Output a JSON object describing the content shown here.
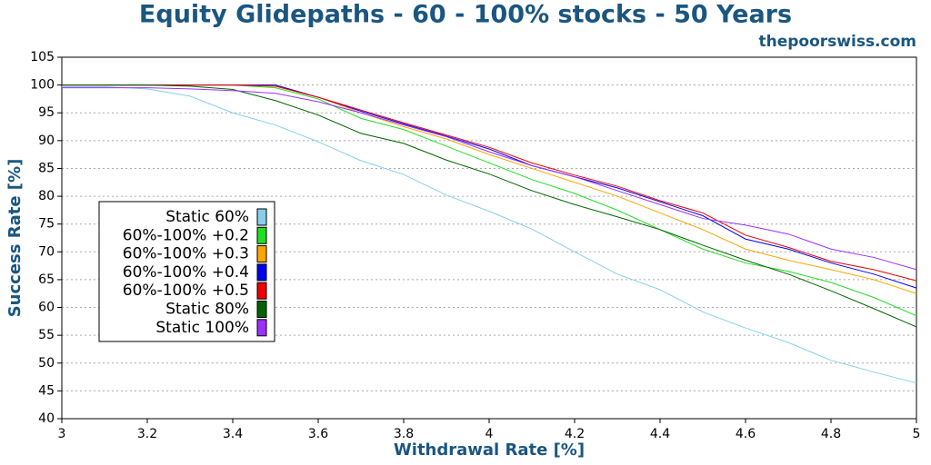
{
  "chart_data": {
    "type": "line",
    "title": "Equity Glidepaths - 60 - 100% stocks - 50 Years",
    "subtitle": "thepoorswiss.com",
    "x_label": "Withdrawal Rate [%]",
    "y_label": "Success Rate [%]",
    "x": [
      3.0,
      3.1,
      3.2,
      3.3,
      3.4,
      3.5,
      3.6,
      3.7,
      3.8,
      3.9,
      4.0,
      4.1,
      4.2,
      4.3,
      4.4,
      4.5,
      4.6,
      4.7,
      4.8,
      4.9,
      5.0
    ],
    "series": [
      {
        "name": "Static 60%",
        "color": "#87ceeb",
        "values": [
          99.7,
          99.7,
          99.3,
          98.0,
          95.0,
          92.8,
          89.8,
          86.4,
          83.9,
          80.2,
          77.3,
          74.1,
          70.0,
          66.0,
          63.2,
          59.2,
          56.3,
          53.7,
          50.5,
          48.4,
          46.4
        ]
      },
      {
        "name": "60%-100% +0.2",
        "color": "#22dd22",
        "values": [
          100,
          100,
          100,
          100,
          100,
          99.5,
          97.5,
          94.0,
          92.0,
          89.0,
          86.0,
          83.0,
          80.5,
          77.5,
          74.0,
          70.5,
          68.0,
          66.5,
          64.5,
          61.8,
          58.5
        ]
      },
      {
        "name": "60%-100% +0.3",
        "color": "#ffa500",
        "values": [
          100,
          100,
          100,
          100,
          100,
          99.8,
          97.8,
          95.0,
          92.5,
          90.3,
          87.5,
          85.0,
          82.5,
          80.0,
          77.0,
          74.0,
          70.5,
          68.5,
          66.8,
          65.0,
          62.5
        ]
      },
      {
        "name": "60%-100% +0.4",
        "color": "#0000ee",
        "values": [
          100,
          100,
          100,
          100,
          100,
          100,
          97.8,
          95.3,
          93.0,
          90.8,
          88.5,
          85.5,
          83.5,
          81.5,
          79.0,
          76.5,
          72.3,
          70.5,
          68.0,
          66.0,
          63.5
        ]
      },
      {
        "name": "60%-100% +0.5",
        "color": "#ee0000",
        "values": [
          100,
          100,
          100,
          100,
          100,
          99.8,
          97.8,
          95.5,
          93.2,
          91.0,
          88.8,
          86.0,
          83.8,
          81.8,
          79.2,
          77.0,
          73.0,
          70.8,
          68.3,
          66.8,
          64.8
        ]
      },
      {
        "name": "Static 80%",
        "color": "#006400",
        "values": [
          100,
          100,
          100,
          99.8,
          99.2,
          97.2,
          94.6,
          91.3,
          89.5,
          86.5,
          84.0,
          81.0,
          78.5,
          76.3,
          74.0,
          71.2,
          68.5,
          66.0,
          63.0,
          59.8,
          56.5
        ]
      },
      {
        "name": "Static 100%",
        "color": "#9b30ff",
        "values": [
          99.5,
          99.5,
          99.5,
          99.3,
          99.0,
          98.5,
          97.0,
          95.0,
          92.8,
          90.7,
          88.0,
          85.5,
          83.5,
          81.0,
          78.5,
          76.0,
          74.8,
          73.2,
          70.5,
          69.0,
          66.8
        ]
      }
    ],
    "xlim": [
      3,
      5
    ],
    "xticks": [
      3,
      3.2,
      3.4,
      3.6,
      3.8,
      4,
      4.2,
      4.4,
      4.6,
      4.8,
      5
    ],
    "ylim": [
      40,
      105
    ],
    "yticks": [
      40,
      45,
      50,
      55,
      60,
      65,
      70,
      75,
      80,
      85,
      90,
      95,
      100,
      105
    ],
    "grid": true,
    "legend": "lower left"
  }
}
